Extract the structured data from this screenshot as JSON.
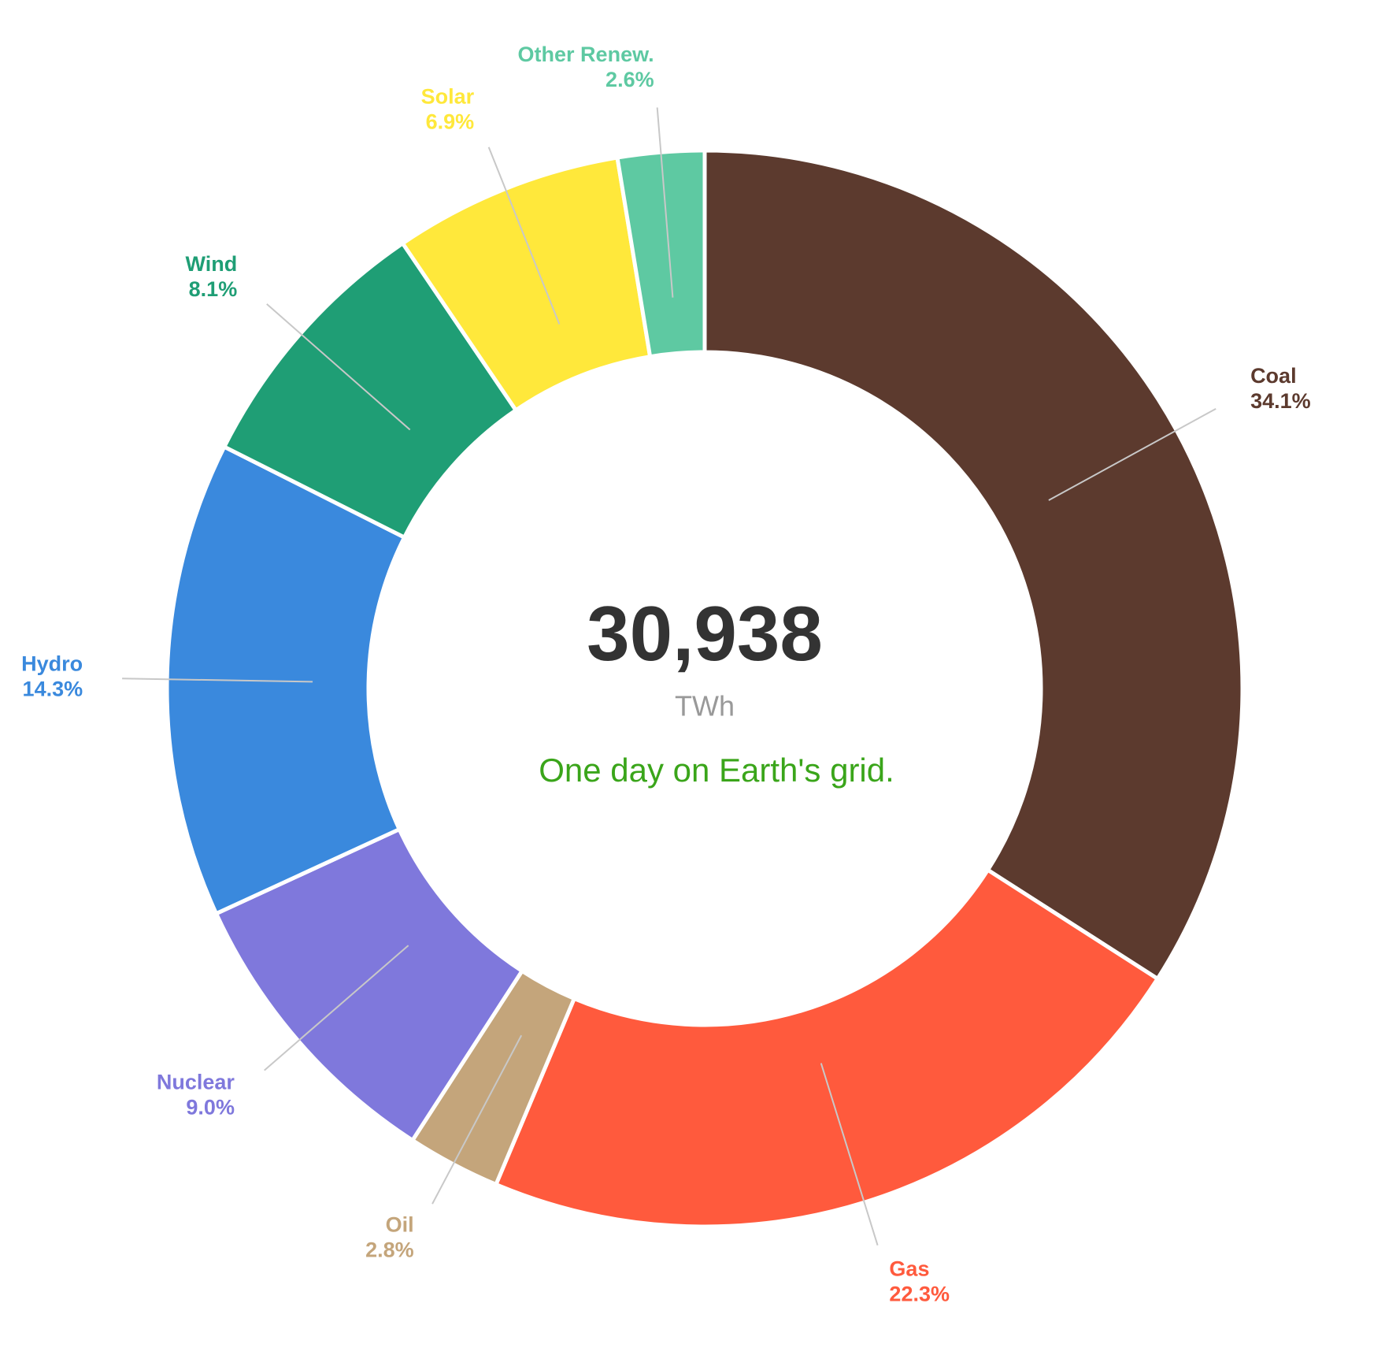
{
  "chart_data": {
    "type": "donut",
    "center_label": "30,938",
    "center_unit": "TWh",
    "subtitle": "One day on Earth's grid.",
    "categories": [
      "Coal",
      "Gas",
      "Oil",
      "Nuclear",
      "Hydro",
      "Wind",
      "Solar",
      "Other Renew."
    ],
    "values": [
      34.1,
      22.3,
      2.8,
      9.0,
      14.3,
      8.1,
      6.9,
      2.6
    ],
    "value_labels": [
      "34.1%",
      "22.3%",
      "2.8%",
      "9.0%",
      "14.3%",
      "8.1%",
      "6.9%",
      "2.6%"
    ],
    "colors": [
      "#5c3a2e",
      "#ff5a3d",
      "#c4a57b",
      "#7f78dc",
      "#3a89dd",
      "#1f9e75",
      "#ffe83b",
      "#5ec9a2"
    ]
  }
}
